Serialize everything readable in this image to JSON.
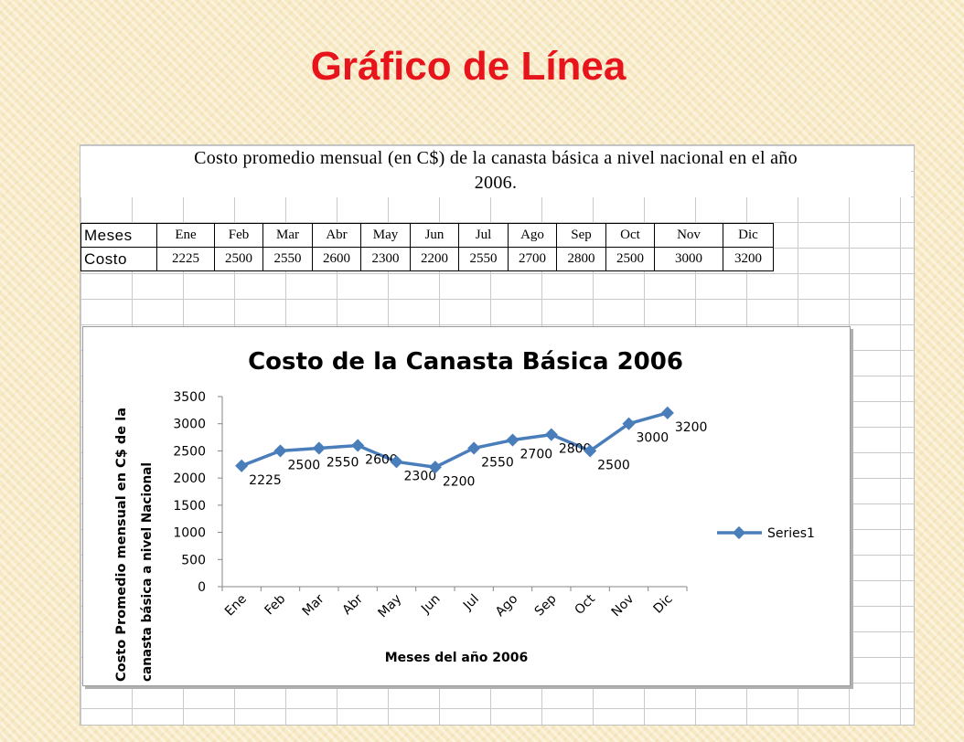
{
  "slide": {
    "title": "Gráfico de Línea"
  },
  "sheet": {
    "caption_line1": "Costo promedio mensual (en C$) de la canasta básica a nivel nacional en el año",
    "caption_line2": "2006.",
    "table": {
      "row1_header": "Meses",
      "row2_header": "Costo",
      "months": [
        "Ene",
        "Feb",
        "Mar",
        "Abr",
        "May",
        "Jun",
        "Jul",
        "Ago",
        "Sep",
        "Oct",
        "Nov",
        "Dic"
      ],
      "costs": [
        "2225",
        "2500",
        "2550",
        "2600",
        "2300",
        "2200",
        "2550",
        "2700",
        "2800",
        "2500",
        "3000",
        "3200"
      ]
    }
  },
  "chart_data": {
    "type": "line",
    "title": "Costo de la Canasta Básica 2006",
    "xlabel": "Meses del año 2006",
    "ylabel_line1": "Costo Promedio mensual en C$ de la",
    "ylabel_line2": "canasta básica  a nivel Nacional",
    "categories": [
      "Ene",
      "Feb",
      "Mar",
      "Abr",
      "May",
      "Jun",
      "Jul",
      "Ago",
      "Sep",
      "Oct",
      "Nov",
      "Dic"
    ],
    "series": [
      {
        "name": "Series1",
        "values": [
          2225,
          2500,
          2550,
          2600,
          2300,
          2200,
          2550,
          2700,
          2800,
          2500,
          3000,
          3200
        ]
      }
    ],
    "ylim": [
      0,
      3500
    ],
    "yticks": [
      0,
      500,
      1000,
      1500,
      2000,
      2500,
      3000,
      3500
    ],
    "grid": false,
    "legend_position": "right",
    "data_labels": true,
    "line_color": "#4a7ebb"
  }
}
